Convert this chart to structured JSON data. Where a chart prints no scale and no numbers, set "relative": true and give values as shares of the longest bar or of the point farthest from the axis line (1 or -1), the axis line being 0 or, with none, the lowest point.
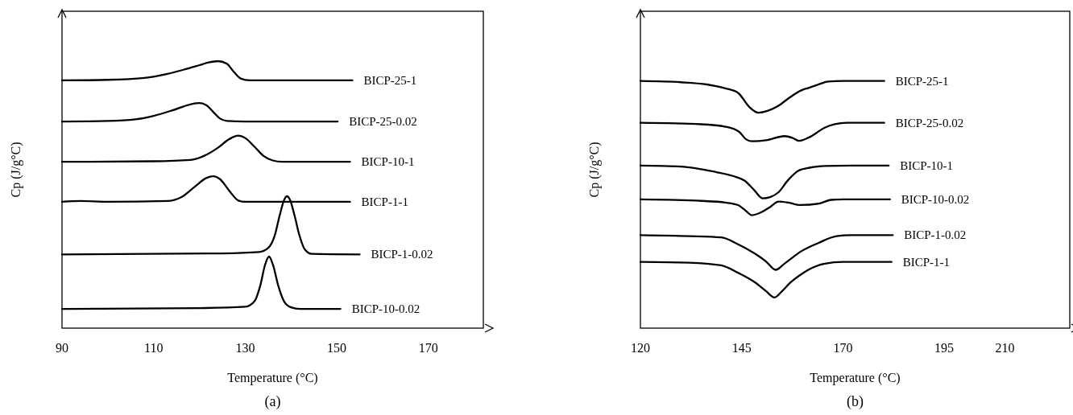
{
  "chart_data": [
    {
      "type": "line",
      "relative": true,
      "xlabel": "Temperature (°C)",
      "ylabel": "Cp (J/g°C)",
      "annotations": [
        "(a)"
      ],
      "xlim": [
        90,
        182
      ],
      "xticks": [
        90,
        110,
        130,
        150,
        170
      ],
      "grid": false,
      "marker": "none",
      "line_style": "solid",
      "series": [
        {
          "name": "BICP-25-1",
          "color": "#000000",
          "x": [
            90,
            100,
            108,
            113,
            117,
            120,
            122,
            124,
            126,
            127.5,
            129,
            131,
            140,
            153.4
          ],
          "values": [
            0.928,
            0.93,
            0.937,
            0.952,
            0.97,
            0.985,
            0.995,
            1.0,
            0.99,
            0.96,
            0.935,
            0.928,
            0.928,
            0.928
          ]
        },
        {
          "name": "BICP-25-0.02",
          "color": "#000000",
          "x": [
            90,
            100,
            106,
            110,
            114,
            118,
            120,
            121.5,
            123,
            124.5,
            126,
            130,
            150.2
          ],
          "values": [
            0.774,
            0.776,
            0.782,
            0.795,
            0.815,
            0.838,
            0.843,
            0.835,
            0.81,
            0.785,
            0.776,
            0.774,
            0.774
          ]
        },
        {
          "name": "BICP-10-1",
          "color": "#000000",
          "x": [
            90,
            110,
            118,
            121,
            124,
            126.5,
            128.5,
            130,
            132,
            134,
            136,
            138,
            152.9
          ],
          "values": [
            0.623,
            0.625,
            0.63,
            0.645,
            0.675,
            0.708,
            0.721,
            0.712,
            0.68,
            0.645,
            0.628,
            0.623,
            0.623
          ]
        },
        {
          "name": "BICP-1-1",
          "color": "#000000",
          "x": [
            90,
            94,
            100,
            113,
            116,
            119,
            121.5,
            123,
            124.5,
            126.5,
            128.5,
            130,
            152.9
          ],
          "values": [
            0.473,
            0.476,
            0.473,
            0.476,
            0.49,
            0.53,
            0.562,
            0.569,
            0.558,
            0.515,
            0.478,
            0.473,
            0.473
          ]
        },
        {
          "name": "BICP-1-0.02",
          "color": "#000000",
          "x": [
            90,
            125,
            133,
            135,
            136.5,
            137.5,
            138.5,
            139.1,
            139.8,
            140.8,
            141.8,
            143,
            144.5,
            155
          ],
          "values": [
            0.276,
            0.28,
            0.285,
            0.3,
            0.35,
            0.42,
            0.48,
            0.494,
            0.48,
            0.42,
            0.35,
            0.295,
            0.278,
            0.276
          ]
        },
        {
          "name": "BICP-10-0.02",
          "color": "#000000",
          "x": [
            90,
            120,
            130,
            132,
            133.3,
            134.3,
            135.2,
            136.1,
            137.2,
            138.5,
            140,
            142,
            150.8
          ],
          "values": [
            0.072,
            0.075,
            0.08,
            0.1,
            0.16,
            0.235,
            0.268,
            0.235,
            0.16,
            0.1,
            0.078,
            0.072,
            0.072
          ]
        }
      ]
    },
    {
      "type": "line",
      "relative": true,
      "xlabel": "Temperature (°C)",
      "ylabel": "Cp (J/g°C)",
      "annotations": [
        "(b)"
      ],
      "xlim": [
        120,
        226
      ],
      "xticks": [
        120,
        145,
        170,
        195,
        210
      ],
      "grid": false,
      "marker": "none",
      "line_style": "solid",
      "series": [
        {
          "name": "BICP-25-1",
          "color": "#000000",
          "x": [
            120,
            130,
            136.4,
            141,
            144.1,
            147,
            149.1,
            151.5,
            154,
            156.9,
            159.8,
            161.5,
            163.5,
            166.4,
            170,
            180.2
          ],
          "values": [
            1.0,
            0.995,
            0.986,
            0.97,
            0.952,
            0.893,
            0.872,
            0.88,
            0.899,
            0.934,
            0.963,
            0.972,
            0.983,
            0.998,
            1.0,
            1.0
          ]
        },
        {
          "name": "BICP-25-0.02",
          "color": "#000000",
          "x": [
            120,
            135,
            141,
            144.4,
            146,
            147.5,
            151,
            155.6,
            157.5,
            159.1,
            162,
            165.5,
            168,
            171,
            180.2
          ],
          "values": [
            0.831,
            0.825,
            0.815,
            0.794,
            0.765,
            0.756,
            0.76,
            0.777,
            0.77,
            0.758,
            0.775,
            0.811,
            0.825,
            0.831,
            0.831
          ]
        },
        {
          "name": "BICP-10-1",
          "color": "#000000",
          "x": [
            120,
            130,
            138.6,
            143,
            145.7,
            148,
            150.2,
            152,
            154.1,
            156.5,
            159.1,
            162,
            165.5,
            172,
            181.3
          ],
          "values": [
            0.658,
            0.654,
            0.632,
            0.615,
            0.597,
            0.56,
            0.525,
            0.53,
            0.55,
            0.6,
            0.638,
            0.65,
            0.656,
            0.658,
            0.658
          ]
        },
        {
          "name": "BICP-10-0.02",
          "color": "#000000",
          "x": [
            120,
            135,
            141,
            144.1,
            146,
            147.5,
            150,
            152,
            154.1,
            156.5,
            159.5,
            164.1,
            167,
            170,
            181.6
          ],
          "values": [
            0.521,
            0.515,
            0.508,
            0.498,
            0.475,
            0.457,
            0.47,
            0.49,
            0.512,
            0.508,
            0.498,
            0.504,
            0.519,
            0.521,
            0.521
          ]
        },
        {
          "name": "BICP-1-0.02",
          "color": "#000000",
          "x": [
            120,
            132,
            139.9,
            144,
            148.4,
            151,
            153.4,
            155.5,
            159.8,
            164,
            168.4,
            172,
            182.3
          ],
          "values": [
            0.376,
            0.372,
            0.367,
            0.34,
            0.3,
            0.27,
            0.236,
            0.26,
            0.312,
            0.345,
            0.372,
            0.376,
            0.376
          ]
        },
        {
          "name": "BICP-1-1",
          "color": "#000000",
          "x": [
            120,
            132,
            139.9,
            144,
            148.4,
            151,
            153.1,
            155,
            157,
            159.8,
            162.5,
            165.5,
            170,
            182
          ],
          "values": [
            0.268,
            0.265,
            0.254,
            0.225,
            0.184,
            0.15,
            0.124,
            0.15,
            0.184,
            0.219,
            0.245,
            0.261,
            0.268,
            0.268
          ]
        }
      ]
    }
  ]
}
